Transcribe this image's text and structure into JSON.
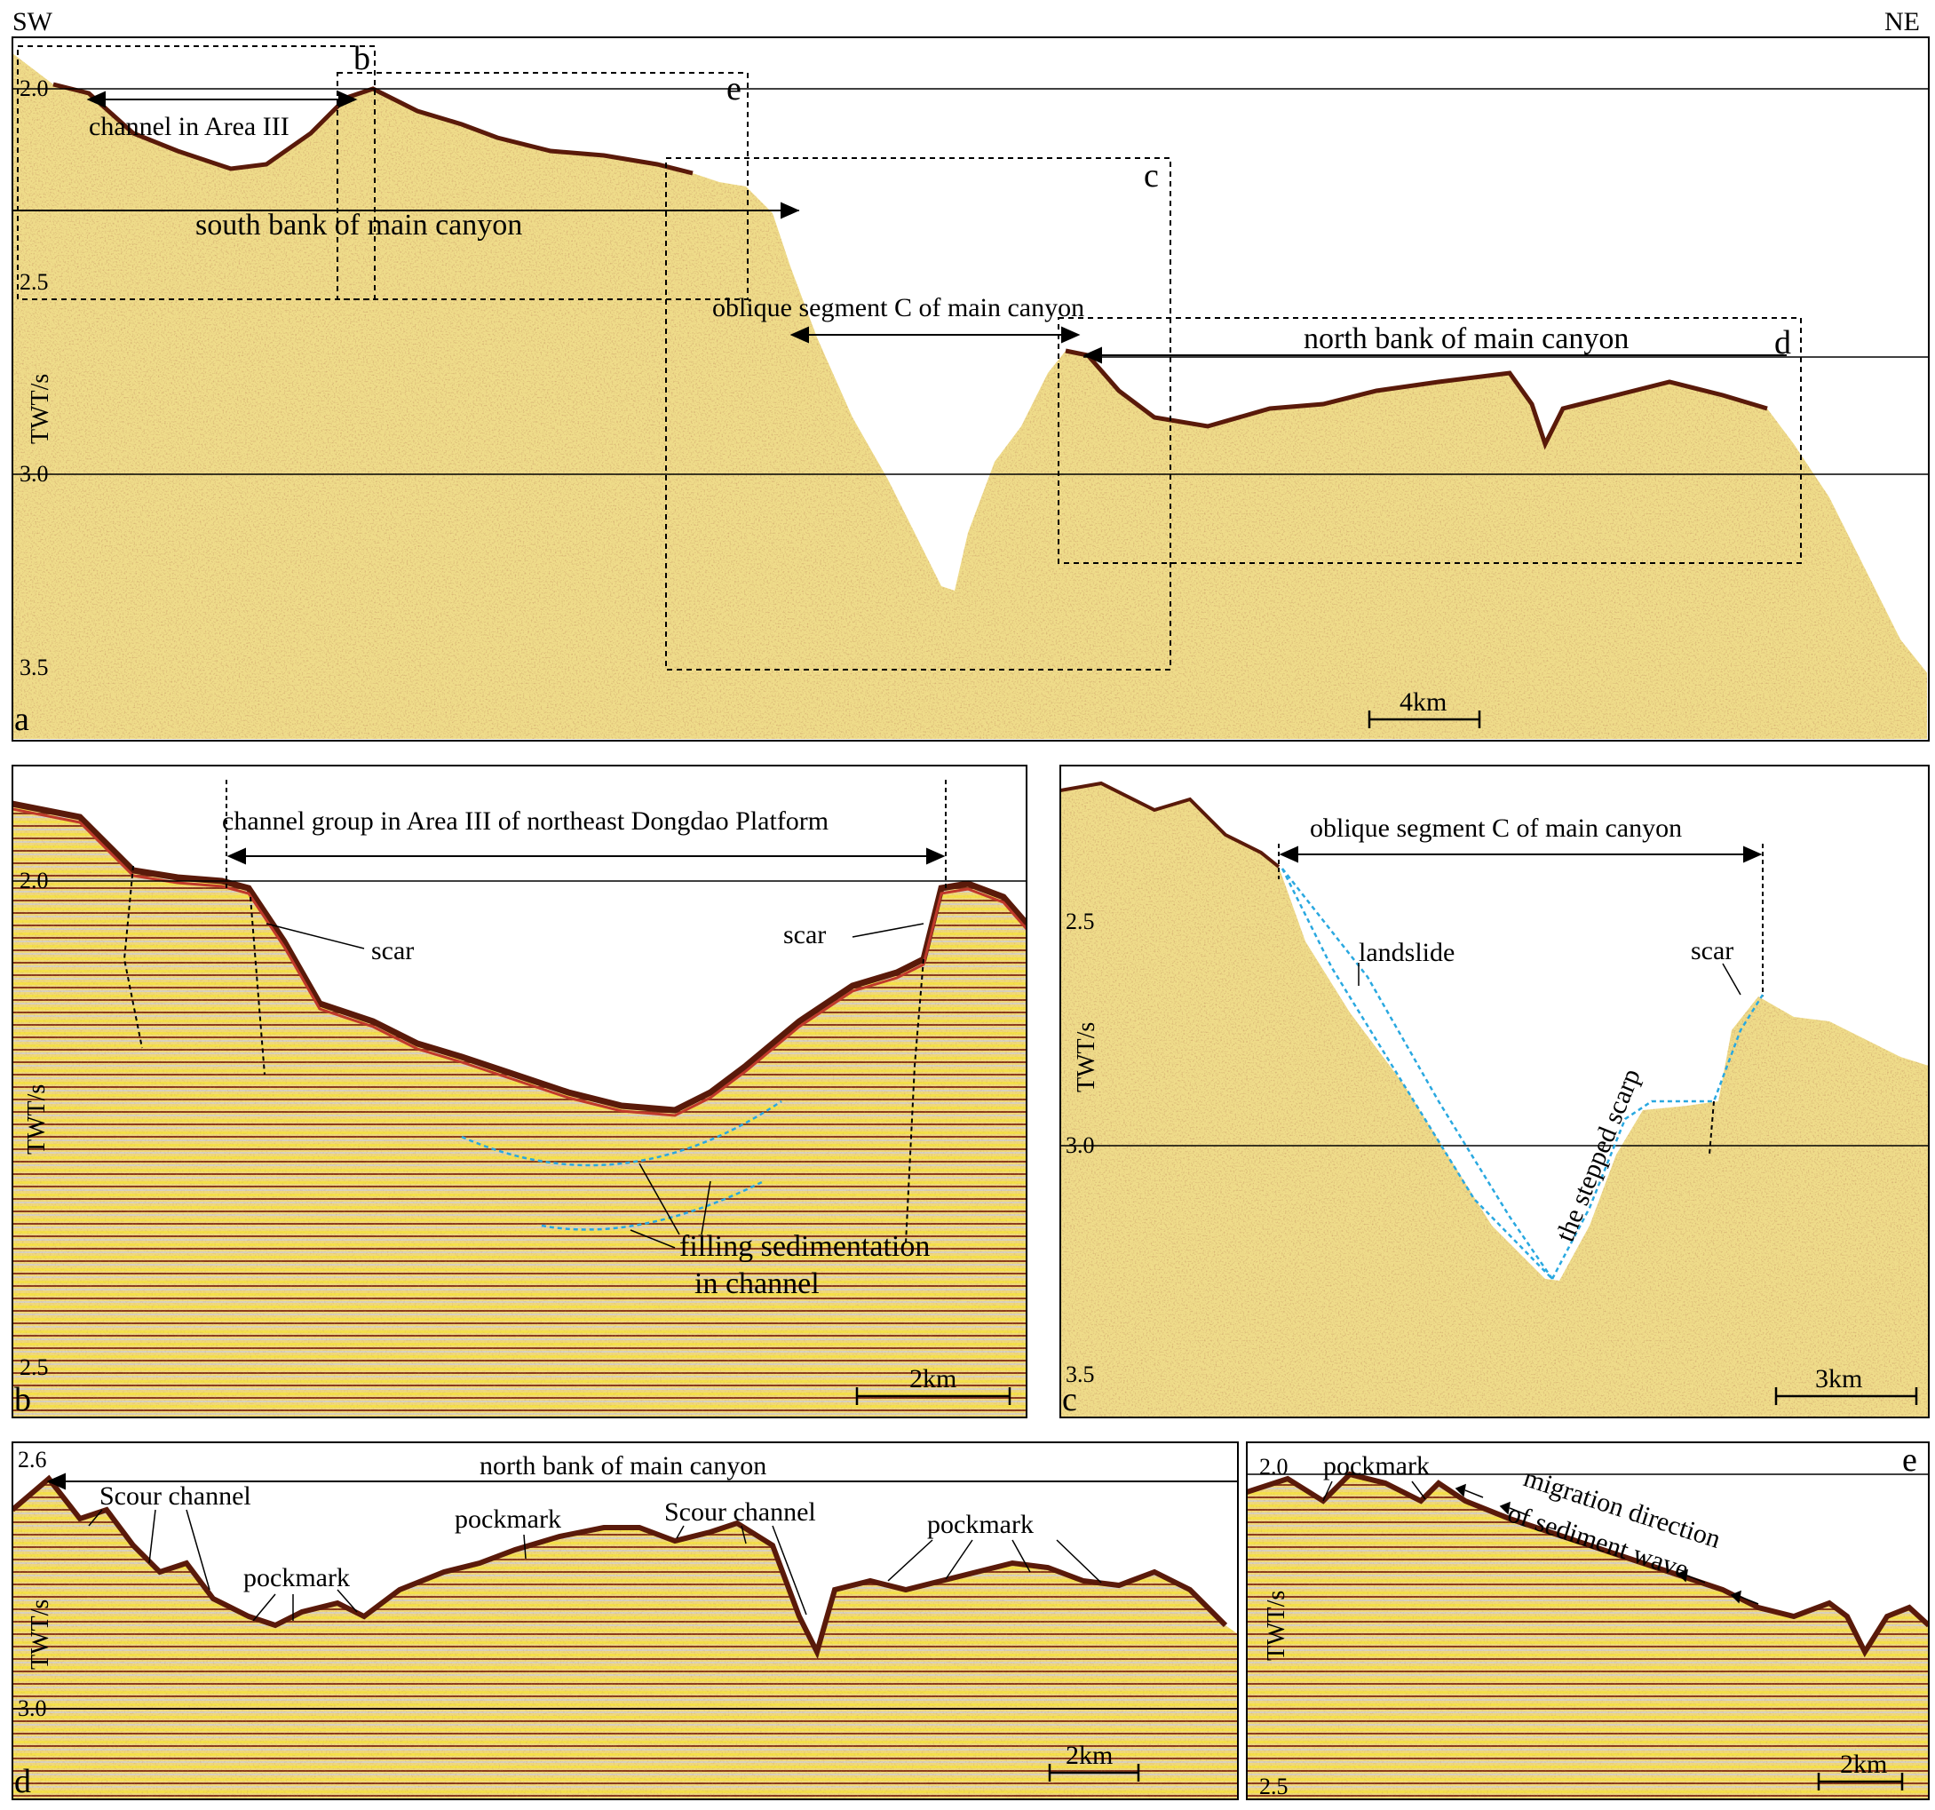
{
  "orientation": {
    "left": "SW",
    "right": "NE"
  },
  "axis_title": "TWT/s",
  "panels": {
    "a": {
      "letter": "a",
      "ticks": [
        "2.0",
        "2.5",
        "3.0",
        "3.5"
      ],
      "box_labels": [
        "b",
        "e",
        "c",
        "d"
      ],
      "labels": {
        "channel": "channel  in Area III",
        "south_bank": "south bank of main canyon",
        "oblique": "oblique segment C of main canyon",
        "north_bank": "north bank of main canyon"
      },
      "scale": "4km"
    },
    "b": {
      "letter": "b",
      "ticks": [
        "2.0",
        "2.5"
      ],
      "labels": {
        "title": "channel group in Area III of northeast  Dongdao Platform",
        "scar1": "scar",
        "scar2": "scar",
        "filling1": "filling sedimentation",
        "filling2": "in channel"
      },
      "scale": "2km"
    },
    "c": {
      "letter": "c",
      "ticks": [
        "2.5",
        "3.0",
        "3.5"
      ],
      "labels": {
        "title": "oblique segment C of main canyon",
        "landslide": "landslide",
        "scar": "scar",
        "stepped": "the stepped  scarp"
      },
      "scale": "3km"
    },
    "d": {
      "letter": "d",
      "ticks": [
        "2.6",
        "3.0"
      ],
      "labels": {
        "title": "north bank of main canyon",
        "scour1": "Scour channel",
        "scour2": "Scour channel",
        "pockmark1": "pockmark",
        "pockmark2": "pockmark",
        "pockmark3": "pockmark"
      },
      "scale": "2km"
    },
    "e": {
      "letter": "e",
      "ticks": [
        "2.0",
        "2.5"
      ],
      "labels": {
        "pockmark": "pockmark",
        "migration1": "migration direction",
        "migration2": "of sediment wave"
      },
      "scale": "2km"
    }
  },
  "colors": {
    "seismic_base": "#efdc8a",
    "seismic_speckle": "#b86a3c",
    "reflector_dark": "#5a1a0a",
    "reflector_red": "#c0392b",
    "reflector_yellow": "#f2d23a",
    "interpretation_blue": "#29a8e0"
  }
}
